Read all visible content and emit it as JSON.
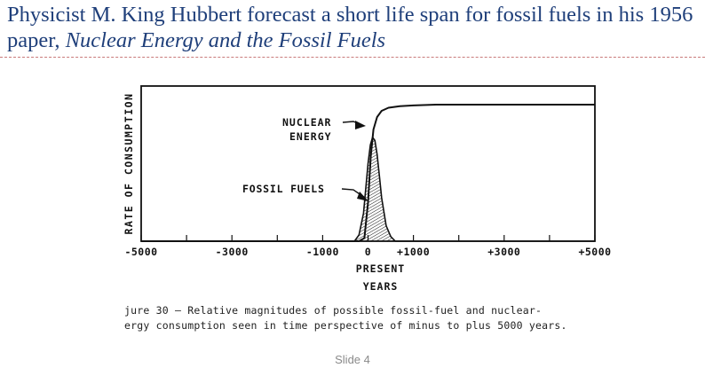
{
  "slide": {
    "title_plain": "Physicist M. King Hubbert forecast a short life span for fossil fuels in his 1956 paper, ",
    "title_italic": "Nuclear Energy and the Fossil Fuels",
    "caption_line1": "jure 30 – Relative magnitudes of possible fossil-fuel and nuclear-",
    "caption_line2": "ergy consumption seen in time perspective of minus to plus 5000 years.",
    "slide_number": "Slide 4"
  },
  "chart_data": {
    "type": "line",
    "ylabel": "RATE OF CONSUMPTION",
    "xlabel_line1": "PRESENT",
    "xlabel_line2": "YEARS",
    "xlim": [
      -5000,
      5000
    ],
    "ylim": [
      0,
      1
    ],
    "grid": false,
    "x_ticks": [
      -5000,
      -4000,
      -3000,
      -2000,
      -1000,
      0,
      1000,
      2000,
      3000,
      4000,
      5000
    ],
    "x_tick_labels": [
      {
        "value": -5000,
        "label": "-5000"
      },
      {
        "value": -3000,
        "label": "-3000"
      },
      {
        "value": -1000,
        "label": "-1000"
      },
      {
        "value": 0,
        "label": "0"
      },
      {
        "value": 1000,
        "label": "+1000"
      },
      {
        "value": 3000,
        "label": "+3000"
      },
      {
        "value": 5000,
        "label": "+5000"
      }
    ],
    "series": [
      {
        "name": "NUCLEAR ENERGY",
        "label_line1": "NUCLEAR",
        "label_line2": "ENERGY",
        "color": "#111111",
        "x": [
          -5000,
          -200,
          -80,
          0,
          60,
          120,
          200,
          300,
          450,
          700,
          1000,
          1500,
          2500,
          3500,
          5000
        ],
        "y": [
          0.0,
          0.0,
          0.02,
          0.25,
          0.55,
          0.72,
          0.8,
          0.84,
          0.86,
          0.87,
          0.875,
          0.88,
          0.88,
          0.88,
          0.88
        ]
      },
      {
        "name": "FOSSIL FUELS",
        "label_line1": "FOSSIL  FUELS",
        "color": "#111111",
        "fill": "hatched",
        "x": [
          -5000,
          -300,
          -200,
          -100,
          0,
          50,
          100,
          150,
          200,
          250,
          300,
          400,
          500,
          600,
          5000
        ],
        "y": [
          0.0,
          0.0,
          0.04,
          0.18,
          0.5,
          0.62,
          0.67,
          0.65,
          0.56,
          0.42,
          0.28,
          0.1,
          0.03,
          0.0,
          0.0
        ]
      }
    ]
  }
}
